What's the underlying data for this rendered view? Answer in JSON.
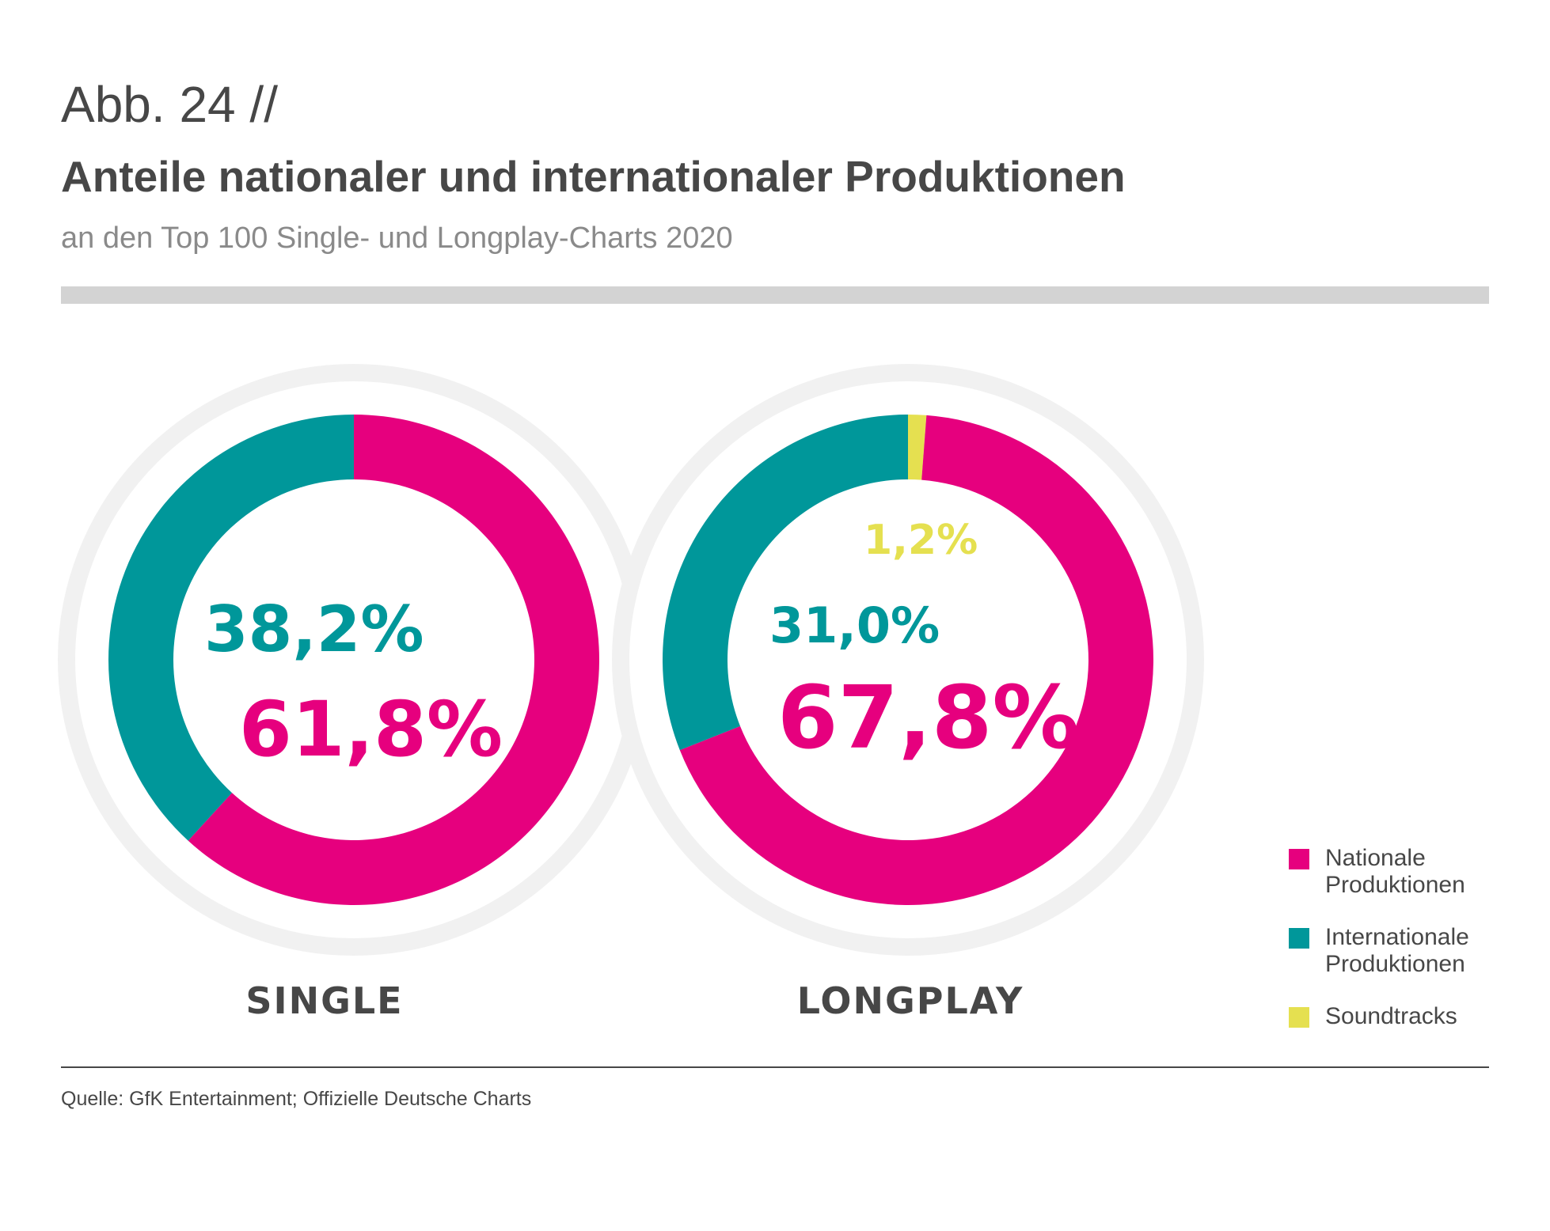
{
  "header": {
    "figure_label": "Abb. 24 //",
    "title": "Anteile nationaler und internationaler Produktionen",
    "subtitle": "an den Top 100 Single- und Longplay-Charts 2020"
  },
  "colors": {
    "nationale": "#e6007e",
    "internationale": "#00979a",
    "soundtracks": "#e5e050",
    "halo": "#f1f1f1",
    "text": "#474747"
  },
  "chart_data": [
    {
      "type": "pie",
      "variant": "donut",
      "label": "SINGLE",
      "slices": [
        {
          "name": "Nationale Produktionen",
          "value": 61.8,
          "label": "61,8%",
          "color": "#e6007e"
        },
        {
          "name": "Internationale Produktionen",
          "value": 38.2,
          "label": "38,2%",
          "color": "#00979a"
        }
      ]
    },
    {
      "type": "pie",
      "variant": "donut",
      "label": "LONGPLAY",
      "slices": [
        {
          "name": "Nationale Produktionen",
          "value": 67.8,
          "label": "67,8%",
          "color": "#e6007e"
        },
        {
          "name": "Internationale Produktionen",
          "value": 31.0,
          "label": "31,0%",
          "color": "#00979a"
        },
        {
          "name": "Soundtracks",
          "value": 1.2,
          "label": "1,2%",
          "color": "#e5e050"
        }
      ]
    }
  ],
  "legend": {
    "placement": "bottom-right",
    "items": [
      {
        "label": "Nationale Produktionen",
        "color": "#e6007e"
      },
      {
        "label": "Internationale Produktionen",
        "color": "#00979a"
      },
      {
        "label": "Soundtracks",
        "color": "#e5e050"
      }
    ]
  },
  "footer": {
    "source": "Quelle: GfK Entertainment; Offizielle Deutsche Charts"
  }
}
